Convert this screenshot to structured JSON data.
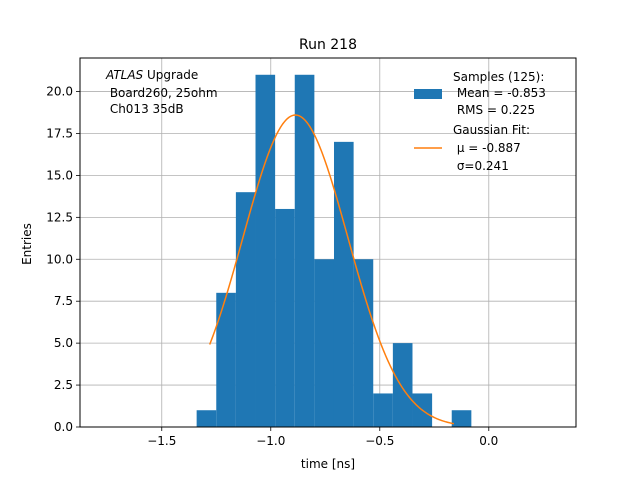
{
  "chart_data": {
    "type": "bar",
    "title": "Run 218",
    "xlabel": "time [ns]",
    "ylabel": "Entries",
    "xlim": [
      -1.875,
      0.4
    ],
    "ylim": [
      0,
      22.0
    ],
    "grid": true,
    "xticks": [
      -1.5,
      -1.0,
      -0.5,
      0.0
    ],
    "xtick_labels": [
      "−1.5",
      "−1.0",
      "−0.5",
      "0.0"
    ],
    "yticks": [
      0,
      2.5,
      5.0,
      7.5,
      10.0,
      12.5,
      15.0,
      17.5,
      20.0
    ],
    "ytick_labels": [
      "0.0",
      "2.5",
      "5.0",
      "7.5",
      "10.0",
      "12.5",
      "15.0",
      "17.5",
      "20.0"
    ],
    "histogram": {
      "name": "Samples (125)",
      "color": "#1f77b4",
      "bin_edges": [
        -1.34,
        -1.25,
        -1.16,
        -1.07,
        -0.98,
        -0.89,
        -0.8,
        -0.71,
        -0.62,
        -0.53,
        -0.44,
        -0.35,
        -0.26,
        -0.17,
        -0.08
      ],
      "counts": [
        1,
        8,
        14,
        21,
        13,
        21,
        10,
        17,
        10,
        2,
        5,
        2,
        0,
        1
      ]
    },
    "fit": {
      "name": "Gaussian Fit",
      "color": "#ff7f0e",
      "mu": -0.887,
      "sigma": 0.241,
      "amplitude": 18.6,
      "x_range": [
        -1.28,
        -0.16
      ]
    },
    "annotation": {
      "italic": "ATLAS",
      "lines": [
        " Upgrade",
        " Board260, 25ohm",
        " Ch013 35dB"
      ]
    },
    "legend": {
      "location": "top-right",
      "entries": [
        {
          "kind": "patch",
          "color": "#1f77b4",
          "lines": [
            "Samples (125):",
            " Mean = -0.853",
            " RMS = 0.225"
          ]
        },
        {
          "kind": "line",
          "color": "#ff7f0e",
          "lines": [
            "Gaussian Fit:",
            " μ = -0.887",
            " σ=0.241"
          ]
        }
      ]
    }
  }
}
